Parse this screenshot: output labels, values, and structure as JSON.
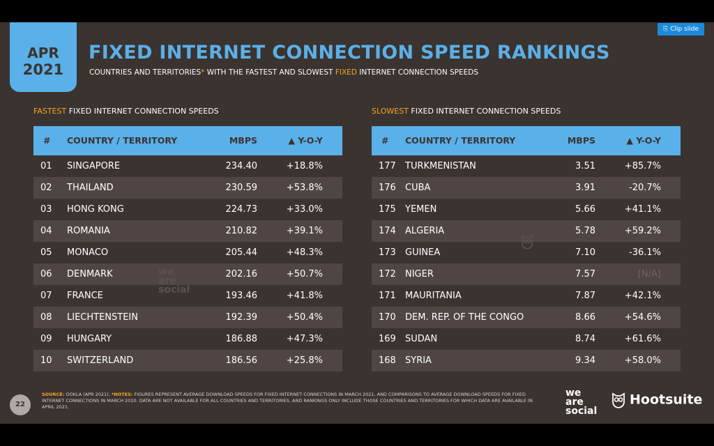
{
  "clip_button": "Clip slide",
  "date": {
    "month": "APR",
    "year": "2021"
  },
  "title": "FIXED INTERNET CONNECTION SPEED RANKINGS",
  "subtitle": {
    "part1": "COUNTRIES AND TERRITORIES",
    "star": "*",
    "part2": " WITH THE FASTEST AND SLOWEST ",
    "accent": "FIXED",
    "part3": " INTERNET CONNECTION SPEEDS"
  },
  "fastest": {
    "title_accent": "FASTEST",
    "title_rest": " FIXED INTERNET CONNECTION SPEEDS",
    "headers": {
      "num": "#",
      "country": "COUNTRY / TERRITORY",
      "mbps": "MBPS",
      "yoy": "▲ Y-O-Y"
    },
    "rows": [
      {
        "rank": "01",
        "country": "SINGAPORE",
        "mbps": "234.40",
        "yoy": "+18.8%"
      },
      {
        "rank": "02",
        "country": "THAILAND",
        "mbps": "230.59",
        "yoy": "+53.8%"
      },
      {
        "rank": "03",
        "country": "HONG KONG",
        "mbps": "224.73",
        "yoy": "+33.0%"
      },
      {
        "rank": "04",
        "country": "ROMANIA",
        "mbps": "210.82",
        "yoy": "+39.1%"
      },
      {
        "rank": "05",
        "country": "MONACO",
        "mbps": "205.44",
        "yoy": "+48.3%"
      },
      {
        "rank": "06",
        "country": "DENMARK",
        "mbps": "202.16",
        "yoy": "+50.7%"
      },
      {
        "rank": "07",
        "country": "FRANCE",
        "mbps": "193.46",
        "yoy": "+41.8%"
      },
      {
        "rank": "08",
        "country": "LIECHTENSTEIN",
        "mbps": "192.39",
        "yoy": "+50.4%"
      },
      {
        "rank": "09",
        "country": "HUNGARY",
        "mbps": "186.88",
        "yoy": "+47.3%"
      },
      {
        "rank": "10",
        "country": "SWITZERLAND",
        "mbps": "186.56",
        "yoy": "+25.8%"
      }
    ]
  },
  "slowest": {
    "title_accent": "SLOWEST",
    "title_rest": " FIXED INTERNET CONNECTION SPEEDS",
    "headers": {
      "num": "#",
      "country": "COUNTRY / TERRITORY",
      "mbps": "MBPS",
      "yoy": "▲ Y-O-Y"
    },
    "rows": [
      {
        "rank": "177",
        "country": "TURKMENISTAN",
        "mbps": "3.51",
        "yoy": "+85.7%"
      },
      {
        "rank": "176",
        "country": "CUBA",
        "mbps": "3.91",
        "yoy": "-20.7%"
      },
      {
        "rank": "175",
        "country": "YEMEN",
        "mbps": "5.66",
        "yoy": "+41.1%"
      },
      {
        "rank": "174",
        "country": "ALGERIA",
        "mbps": "5.78",
        "yoy": "+59.2%"
      },
      {
        "rank": "173",
        "country": "GUINEA",
        "mbps": "7.10",
        "yoy": "-36.1%"
      },
      {
        "rank": "172",
        "country": "NIGER",
        "mbps": "7.57",
        "yoy": "[N/A]"
      },
      {
        "rank": "171",
        "country": "MAURITANIA",
        "mbps": "7.87",
        "yoy": "+42.1%"
      },
      {
        "rank": "170",
        "country": "DEM. REP. OF THE CONGO",
        "mbps": "8.66",
        "yoy": "+54.6%"
      },
      {
        "rank": "169",
        "country": "SUDAN",
        "mbps": "8.74",
        "yoy": "+61.6%"
      },
      {
        "rank": "168",
        "country": "SYRIA",
        "mbps": "9.34",
        "yoy": "+58.0%"
      }
    ]
  },
  "footer": {
    "page": "22",
    "source_label": "SOURCE:",
    "source_text": " OOKLA (APR 2021). ",
    "notes_label": "*NOTES:",
    "notes_text": " FIGURES REPRESENT AVERAGE DOWNLOAD SPEEDS FOR FIXED INTERNET CONNECTIONS IN MARCH 2021, AND COMPARISONS TO AVERAGE DOWNLOAD SPEEDS FOR FIXED INTERNET CONNECTIONS IN MARCH 2020. DATA ARE NOT AVAILABLE FOR ALL COUNTRIES AND TERRITORIES, AND RANKINGS ONLY INCLUDE THOSE COUNTRIES AND TERRITORIES FOR WHICH DATA ARE AVAILABLE IN APRIL 2021.",
    "we_are_social": [
      "we",
      "are",
      "social"
    ],
    "hootsuite": "Hootsuite"
  },
  "watermark": [
    "we",
    "are",
    "social"
  ],
  "colors": {
    "background": "#3b3330",
    "accent_blue": "#5ab0e8",
    "accent_orange": "#f6a623"
  }
}
